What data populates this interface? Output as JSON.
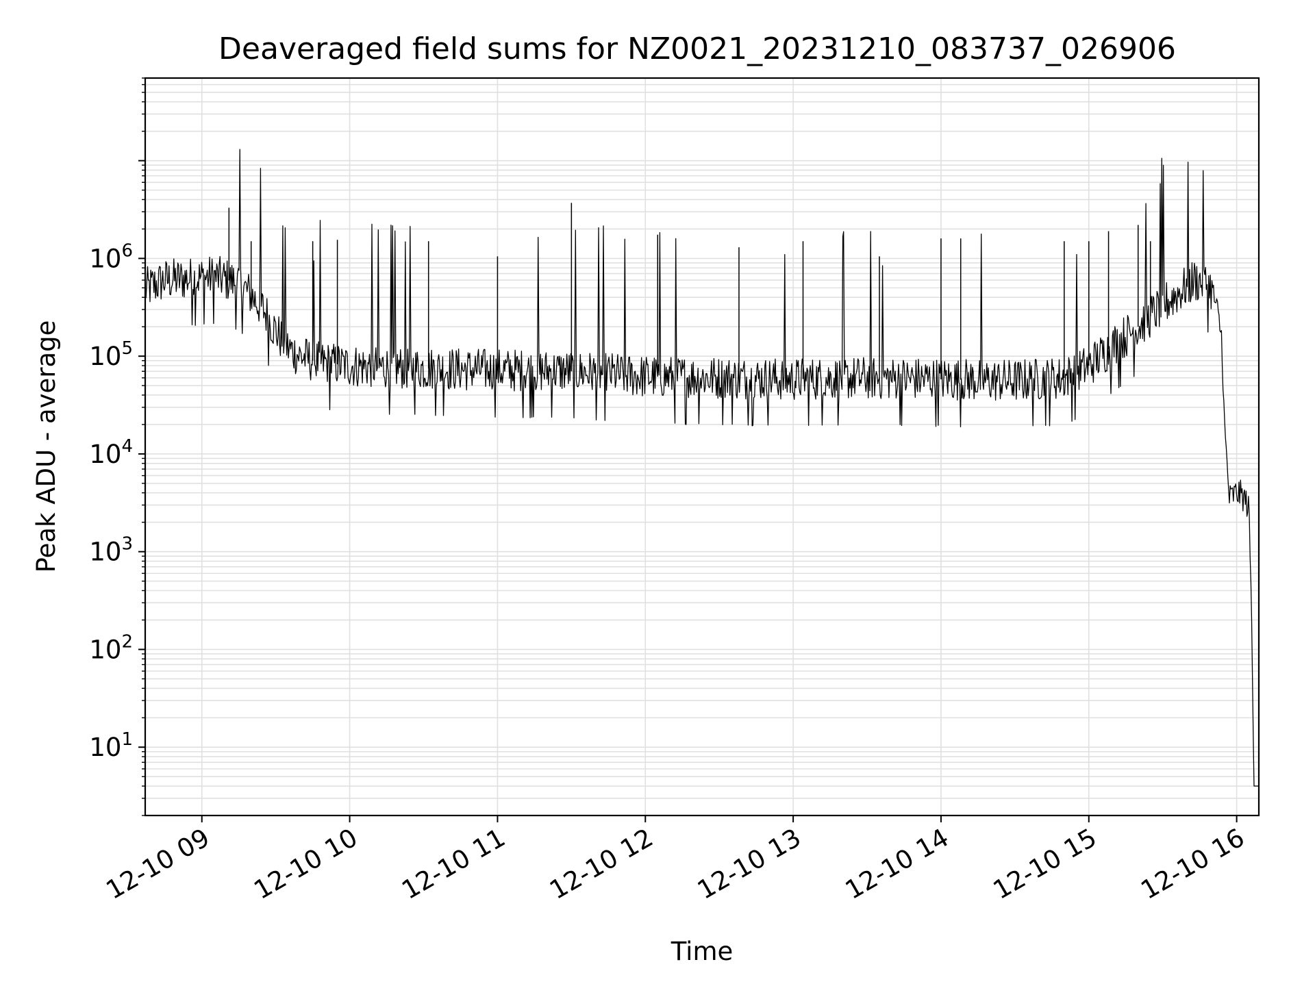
{
  "chart_data": {
    "type": "line",
    "title": "Deaveraged field sums for NZ0021_20231210_083737_026906",
    "xlabel": "Time",
    "ylabel": "Peak ADU - average",
    "yscale": "log",
    "grid": true,
    "line_color": "#000000",
    "grid_color": "#e0e0e0",
    "xlim": [
      "2023-12-10 08:37",
      "2023-12-10 16:09"
    ],
    "ylim": [
      2,
      70000000
    ],
    "x_ticks": [
      {
        "value": "2023-12-10 09:00",
        "label": "12-10 09"
      },
      {
        "value": "2023-12-10 10:00",
        "label": "12-10 10"
      },
      {
        "value": "2023-12-10 11:00",
        "label": "12-10 11"
      },
      {
        "value": "2023-12-10 12:00",
        "label": "12-10 12"
      },
      {
        "value": "2023-12-10 13:00",
        "label": "12-10 13"
      },
      {
        "value": "2023-12-10 14:00",
        "label": "12-10 14"
      },
      {
        "value": "2023-12-10 15:00",
        "label": "12-10 15"
      },
      {
        "value": "2023-12-10 16:00",
        "label": "12-10 16"
      }
    ],
    "y_ticks": [
      {
        "value": 10,
        "base": "10",
        "exp": "1"
      },
      {
        "value": 100,
        "base": "10",
        "exp": "2"
      },
      {
        "value": 1000,
        "base": "10",
        "exp": "3"
      },
      {
        "value": 10000,
        "base": "10",
        "exp": "4"
      },
      {
        "value": 100000,
        "base": "10",
        "exp": "5"
      },
      {
        "value": 1000000,
        "base": "10",
        "exp": "6"
      }
    ],
    "series": [
      {
        "x": [
          "2023-12-10 08:37",
          "2023-12-10 08:45",
          "2023-12-10 08:55",
          "2023-12-10 09:05",
          "2023-12-10 09:15",
          "2023-12-10 09:20",
          "2023-12-10 09:25",
          "2023-12-10 09:30",
          "2023-12-10 09:35",
          "2023-12-10 09:40",
          "2023-12-10 09:45",
          "2023-12-10 09:50",
          "2023-12-10 10:00",
          "2023-12-10 10:30",
          "2023-12-10 11:00",
          "2023-12-10 11:30",
          "2023-12-10 12:00",
          "2023-12-10 12:30",
          "2023-12-10 13:00",
          "2023-12-10 13:30",
          "2023-12-10 14:00",
          "2023-12-10 14:30",
          "2023-12-10 14:50",
          "2023-12-10 15:00",
          "2023-12-10 15:10",
          "2023-12-10 15:20",
          "2023-12-10 15:30",
          "2023-12-10 15:38",
          "2023-12-10 15:43",
          "2023-12-10 15:48",
          "2023-12-10 15:50",
          "2023-12-10 15:52",
          "2023-12-10 15:54",
          "2023-12-10 15:55",
          "2023-12-10 15:57",
          "2023-12-10 16:00",
          "2023-12-10 16:02",
          "2023-12-10 16:04",
          "2023-12-10 16:05",
          "2023-12-10 16:06",
          "2023-12-10 16:07",
          "2023-12-10 16:09"
        ],
        "y": [
          480000,
          600000,
          620000,
          650000,
          560000,
          420000,
          300000,
          180000,
          120000,
          100000,
          90000,
          85000,
          80000,
          75000,
          72000,
          70000,
          62000,
          60000,
          58000,
          60000,
          58000,
          56000,
          60000,
          80000,
          130000,
          200000,
          330000,
          480000,
          600000,
          550000,
          480000,
          300000,
          150000,
          20000,
          3500,
          4000,
          3800,
          3200,
          2600,
          300,
          4,
          4
        ]
      }
    ],
    "spikes": [
      {
        "x": "2023-12-10 09:11",
        "y": 3300000
      },
      {
        "x": "2023-12-10 09:20",
        "y": 1500000
      },
      {
        "x": "2023-12-10 09:45",
        "y": 1500000
      },
      {
        "x": "2023-12-10 09:55",
        "y": 1550000
      },
      {
        "x": "2023-12-10 10:32",
        "y": 1500000
      },
      {
        "x": "2023-12-10 11:00",
        "y": 1050000
      },
      {
        "x": "2023-12-10 11:30",
        "y": 3700000
      },
      {
        "x": "2023-12-10 12:05",
        "y": 1750000
      },
      {
        "x": "2023-12-10 12:38",
        "y": 1300000
      },
      {
        "x": "2023-12-10 13:04",
        "y": 1500000
      },
      {
        "x": "2023-12-10 13:35",
        "y": 1050000
      },
      {
        "x": "2023-12-10 14:00",
        "y": 1600000
      },
      {
        "x": "2023-12-10 14:08",
        "y": 1600000
      },
      {
        "x": "2023-12-10 14:50",
        "y": 1500000
      },
      {
        "x": "2023-12-10 15:00",
        "y": 1500000
      },
      {
        "x": "2023-12-10 15:08",
        "y": 1900000
      },
      {
        "x": "2023-12-10 15:20",
        "y": 2200000
      },
      {
        "x": "2023-12-10 15:25",
        "y": 1500000
      }
    ]
  }
}
